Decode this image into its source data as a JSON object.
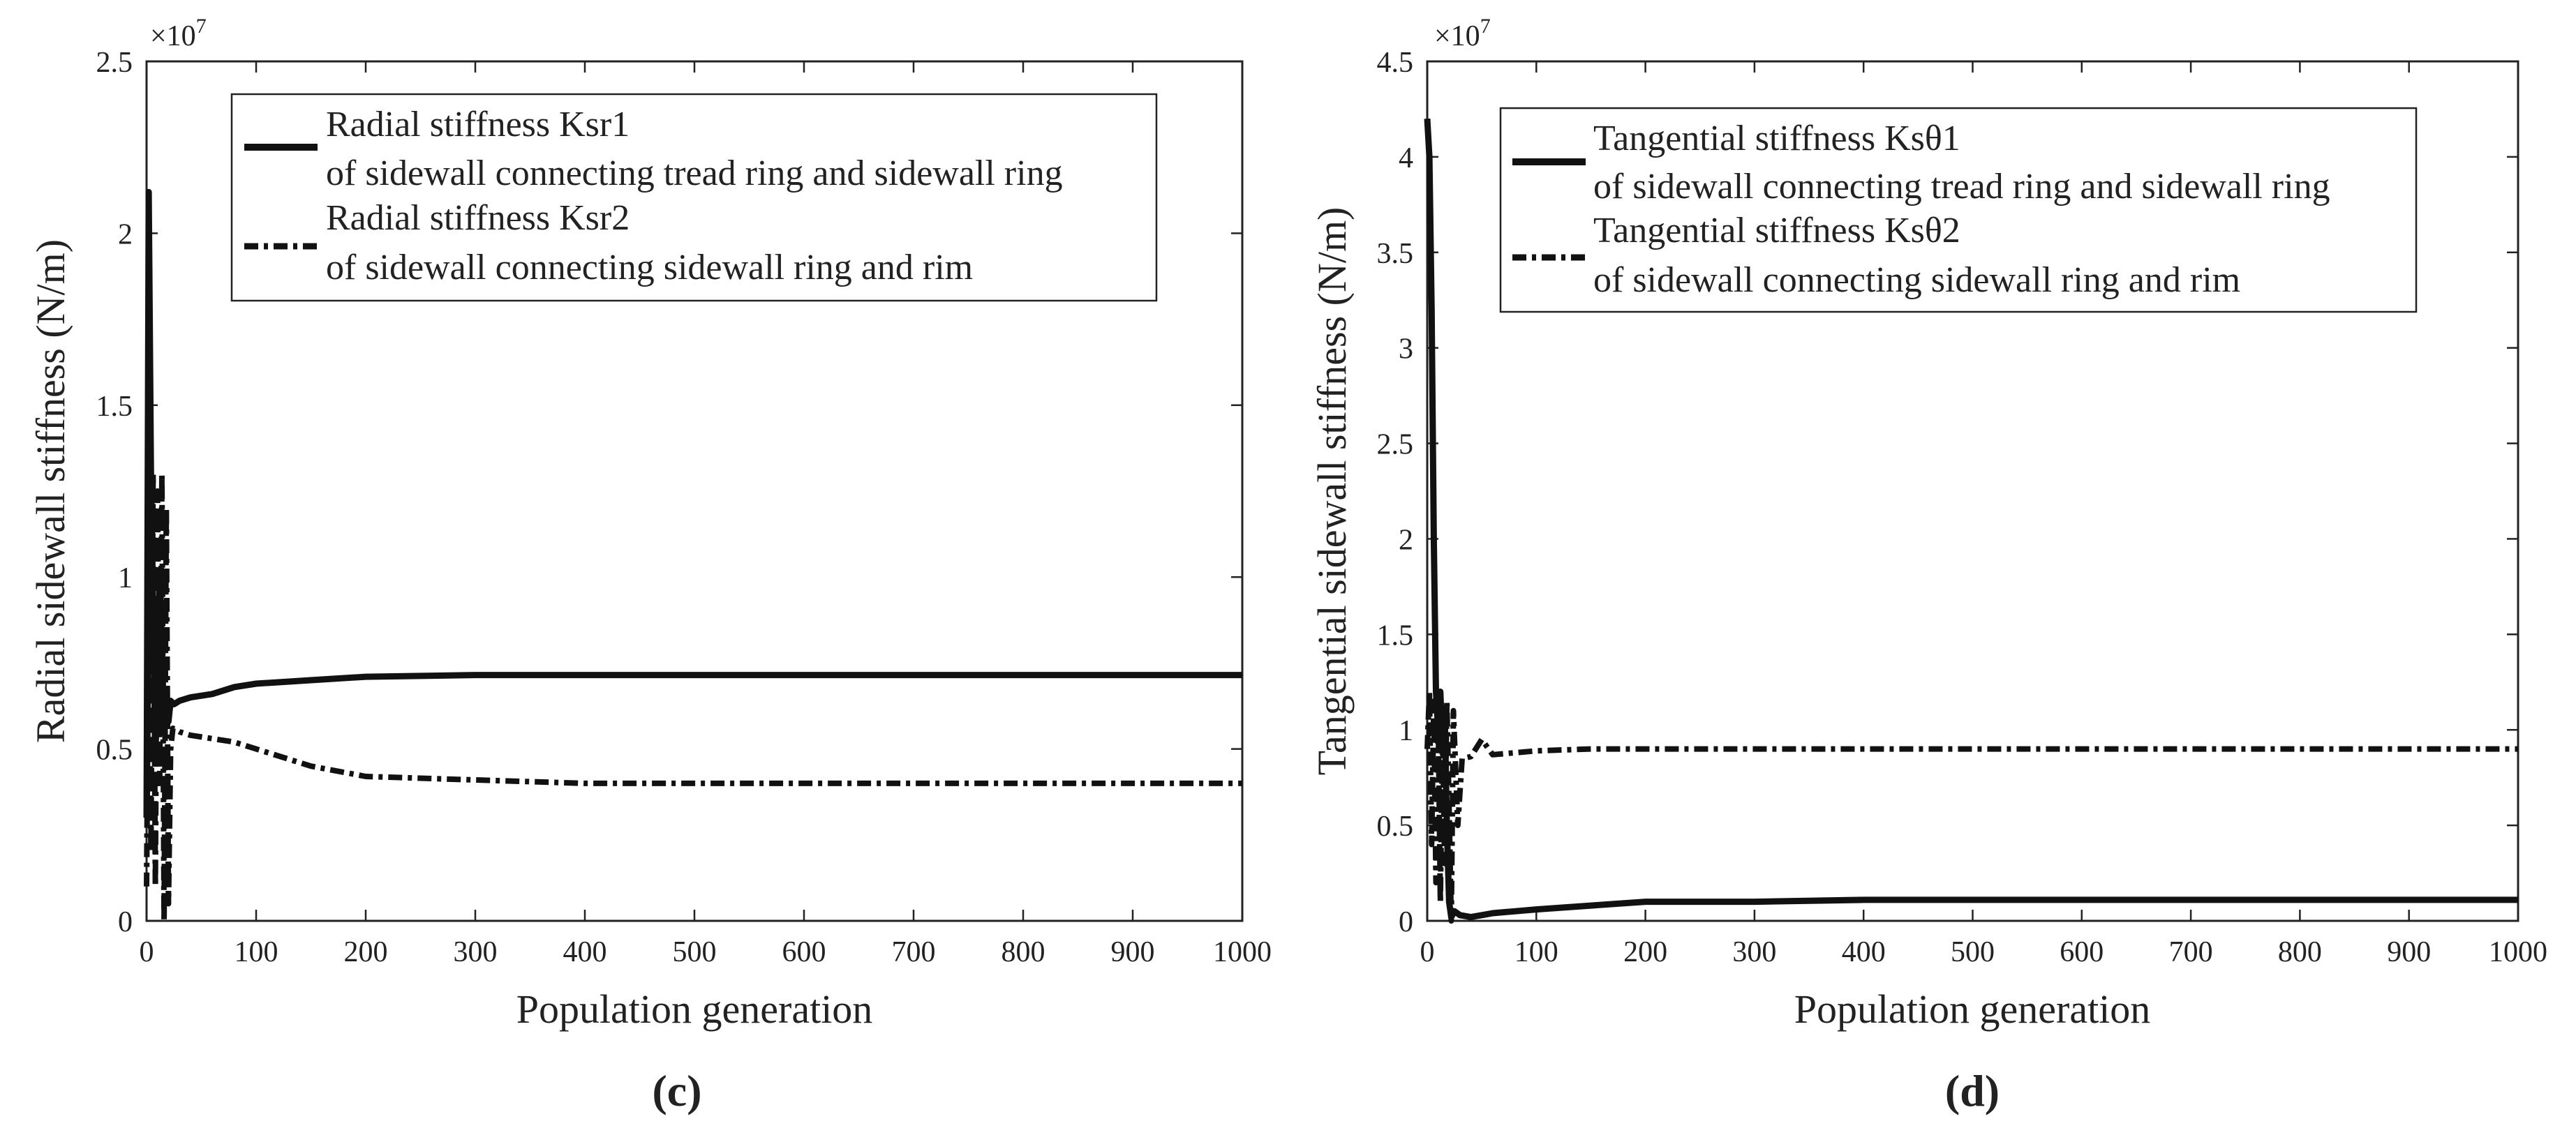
{
  "figure": {
    "panel_labels": [
      "(c)",
      "(d)"
    ]
  },
  "chart_data": [
    {
      "type": "line",
      "panel": "(c)",
      "title": "",
      "xlabel": "Population generation",
      "ylabel": "Radial sidewall stiffness (N/m)",
      "exponent_label": "×10",
      "exponent_power": "7",
      "xlim": [
        0,
        1000
      ],
      "ylim": [
        0,
        2.5
      ],
      "xticks": [
        0,
        100,
        200,
        300,
        400,
        500,
        600,
        700,
        800,
        900,
        1000
      ],
      "yticks": [
        0,
        0.5,
        1,
        1.5,
        2,
        2.5
      ],
      "xtick_labels": [
        "0",
        "100",
        "200",
        "300",
        "400",
        "500",
        "600",
        "700",
        "800",
        "900",
        "1000"
      ],
      "ytick_labels": [
        "0",
        "0.5",
        "1",
        "1.5",
        "2",
        "2.5"
      ],
      "grid": false,
      "legend_position": "top",
      "series": [
        {
          "name": "Radial stiffness Ksr1",
          "name_line2": "of sidewall connecting tread ring and sidewall ring",
          "style": "solid",
          "x": [
            0,
            2,
            4,
            6,
            8,
            10,
            12,
            14,
            16,
            18,
            20,
            22,
            25,
            30,
            40,
            60,
            80,
            100,
            150,
            200,
            300,
            400,
            500,
            600,
            700,
            800,
            900,
            1000
          ],
          "values": [
            0.3,
            2.12,
            1.3,
            0.9,
            0.5,
            0.62,
            1.0,
            0.8,
            0.55,
            0.6,
            0.58,
            0.64,
            0.63,
            0.64,
            0.65,
            0.66,
            0.68,
            0.69,
            0.7,
            0.71,
            0.715,
            0.715,
            0.715,
            0.715,
            0.715,
            0.715,
            0.715,
            0.715
          ]
        },
        {
          "name": "Radial stiffness Ksr2",
          "name_line2": "of sidewall connecting sidewall ring and rim",
          "style": "dashdot",
          "x": [
            0,
            2,
            4,
            6,
            8,
            10,
            12,
            14,
            16,
            18,
            20,
            22,
            24,
            30,
            40,
            60,
            80,
            100,
            150,
            200,
            300,
            400,
            500,
            600,
            700,
            800,
            900,
            1000
          ],
          "values": [
            0.1,
            0.9,
            0.2,
            1.3,
            0.1,
            1.25,
            0.4,
            1.3,
            0.0,
            1.2,
            0.05,
            0.5,
            0.56,
            0.55,
            0.54,
            0.53,
            0.52,
            0.5,
            0.45,
            0.42,
            0.41,
            0.4,
            0.4,
            0.4,
            0.4,
            0.4,
            0.4,
            0.4
          ]
        }
      ]
    },
    {
      "type": "line",
      "panel": "(d)",
      "title": "",
      "xlabel": "Population generation",
      "ylabel": "Tangential sidewall stiffness (N/m)",
      "exponent_label": "×10",
      "exponent_power": "7",
      "xlim": [
        0,
        1000
      ],
      "ylim": [
        0,
        4.5
      ],
      "xticks": [
        0,
        100,
        200,
        300,
        400,
        500,
        600,
        700,
        800,
        900,
        1000
      ],
      "yticks": [
        0,
        0.5,
        1,
        1.5,
        2,
        2.5,
        3,
        3.5,
        4,
        4.5
      ],
      "xtick_labels": [
        "0",
        "100",
        "200",
        "300",
        "400",
        "500",
        "600",
        "700",
        "800",
        "900",
        "1000"
      ],
      "ytick_labels": [
        "0",
        "0.5",
        "1",
        "1.5",
        "2",
        "2.5",
        "3",
        "3.5",
        "4",
        "4.5"
      ],
      "grid": false,
      "legend_position": "top",
      "series": [
        {
          "name": "Tangential stiffness Ksθ1",
          "name_line2": "of sidewall connecting tread ring and sidewall ring",
          "style": "solid",
          "x": [
            0,
            2,
            4,
            6,
            8,
            10,
            12,
            14,
            16,
            18,
            20,
            22,
            25,
            30,
            40,
            50,
            60,
            80,
            100,
            150,
            200,
            300,
            400,
            500,
            600,
            700,
            800,
            900,
            1000
          ],
          "values": [
            4.2,
            4.0,
            3.2,
            2.0,
            1.2,
            1.0,
            1.2,
            0.9,
            1.1,
            0.5,
            0.1,
            0.02,
            0.05,
            0.03,
            0.02,
            0.03,
            0.04,
            0.05,
            0.06,
            0.08,
            0.1,
            0.1,
            0.11,
            0.11,
            0.11,
            0.11,
            0.11,
            0.11,
            0.11
          ]
        },
        {
          "name": "Tangential stiffness Ksθ2",
          "name_line2": " of sidewall connecting sidewall ring and rim",
          "style": "dashdot",
          "x": [
            0,
            2,
            4,
            6,
            8,
            10,
            12,
            14,
            16,
            18,
            20,
            22,
            24,
            28,
            32,
            40,
            50,
            60,
            80,
            100,
            150,
            200,
            300,
            400,
            500,
            600,
            700,
            800,
            900,
            1000
          ],
          "values": [
            0.9,
            1.2,
            0.4,
            1.15,
            0.2,
            1.1,
            0.1,
            1.0,
            0.3,
            1.15,
            0.6,
            0.0,
            1.1,
            0.5,
            0.85,
            0.86,
            0.95,
            0.87,
            0.88,
            0.89,
            0.9,
            0.9,
            0.9,
            0.9,
            0.9,
            0.9,
            0.9,
            0.9,
            0.9,
            0.9
          ]
        }
      ]
    }
  ]
}
